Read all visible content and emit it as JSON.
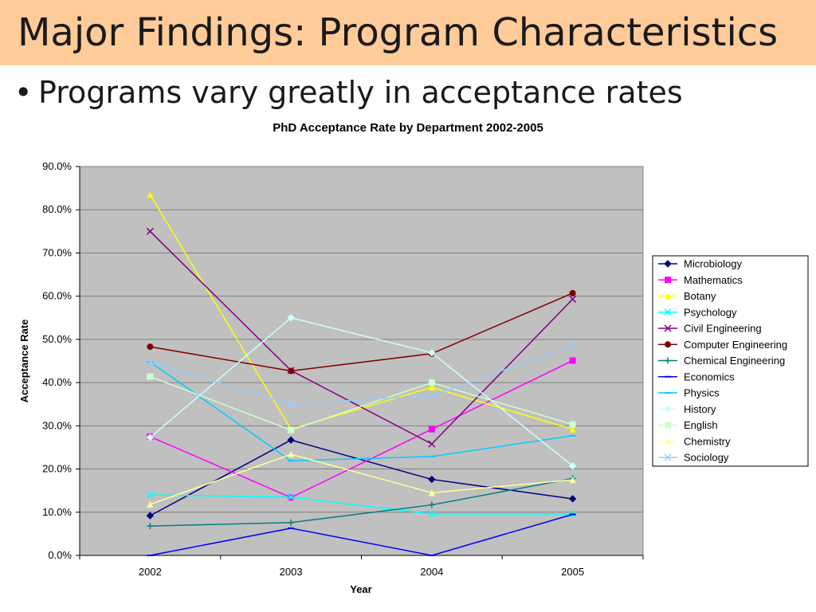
{
  "slide": {
    "title": "Major Findings: Program Characteristics",
    "bullet": "Programs vary greatly in acceptance rates"
  },
  "colors": {
    "title_bar": "#ffcc99",
    "plot_area": "#c0c0c0",
    "gridline": "#808080"
  },
  "chart_data": {
    "type": "line",
    "title": "PhD Acceptance Rate by Department 2002-2005",
    "xlabel": "Year",
    "ylabel": "Acceptance Rate",
    "categories": [
      "2002",
      "2003",
      "2004",
      "2005"
    ],
    "ylim": [
      0,
      90
    ],
    "yticks": [
      "0.0%",
      "10.0%",
      "20.0%",
      "30.0%",
      "40.0%",
      "50.0%",
      "60.0%",
      "70.0%",
      "80.0%",
      "90.0%"
    ],
    "grid": "horizontal",
    "legend_position": "right",
    "series": [
      {
        "name": "Microbiology",
        "color": "#000080",
        "marker": "diamond",
        "values": [
          9.2,
          26.7,
          17.6,
          13.1
        ]
      },
      {
        "name": "Mathematics",
        "color": "#ff00ff",
        "marker": "square",
        "values": [
          27.5,
          13.4,
          29.2,
          45.1
        ]
      },
      {
        "name": "Botany",
        "color": "#ffff00",
        "marker": "triangle",
        "values": [
          83.5,
          29.2,
          38.9,
          29.2
        ]
      },
      {
        "name": "Psychology",
        "color": "#00ffff",
        "marker": "x",
        "values": [
          14.0,
          13.5,
          9.6,
          9.6
        ]
      },
      {
        "name": "Civil Engineering",
        "color": "#800080",
        "marker": "x",
        "values": [
          75.0,
          42.8,
          25.8,
          59.3
        ]
      },
      {
        "name": "Computer Engineering",
        "color": "#800000",
        "marker": "circle",
        "values": [
          48.3,
          42.7,
          46.7,
          60.7
        ]
      },
      {
        "name": "Chemical Engineering",
        "color": "#008080",
        "marker": "plus",
        "values": [
          6.8,
          7.6,
          11.7,
          17.8
        ]
      },
      {
        "name": "Economics",
        "color": "#0000ff",
        "marker": "dash",
        "values": [
          0.0,
          6.3,
          0.0,
          9.5
        ]
      },
      {
        "name": "Physics",
        "color": "#00ccff",
        "marker": "dash",
        "values": [
          44.8,
          21.9,
          22.9,
          27.7
        ]
      },
      {
        "name": "History",
        "color": "#ccffff",
        "marker": "diamond",
        "values": [
          27.3,
          55.0,
          46.9,
          20.7
        ]
      },
      {
        "name": "English",
        "color": "#ccffcc",
        "marker": "square",
        "values": [
          41.4,
          29.0,
          40.0,
          30.3
        ]
      },
      {
        "name": "Chemistry",
        "color": "#ffff99",
        "marker": "triangle",
        "values": [
          11.8,
          23.4,
          14.5,
          17.5
        ]
      },
      {
        "name": "Sociology",
        "color": "#99ccff",
        "marker": "x",
        "values": [
          44.7,
          35.0,
          37.0,
          48.6
        ]
      }
    ]
  }
}
